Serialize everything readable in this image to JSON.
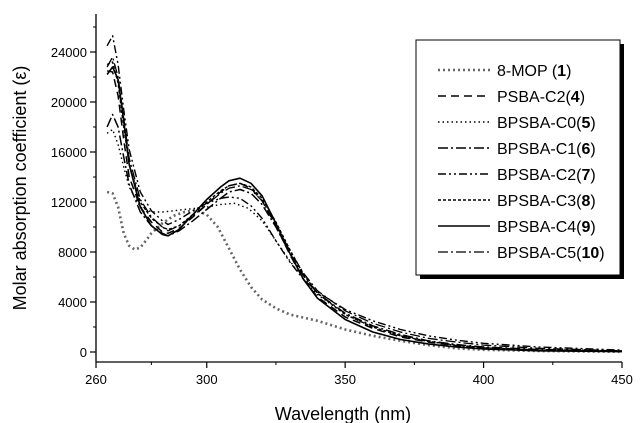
{
  "chart_data": {
    "type": "line",
    "xlabel": "Wavelength (nm)",
    "ylabel": "Molar absorption coefficient (ε)",
    "xlim": [
      260,
      450
    ],
    "ylim": [
      0,
      26000
    ],
    "x_ticks": [
      260,
      300,
      350,
      400,
      450
    ],
    "y_ticks": [
      0,
      4000,
      8000,
      12000,
      16000,
      20000,
      24000
    ],
    "x_tick_labels": [
      "260",
      "300",
      "350",
      "400",
      "450"
    ],
    "y_tick_labels": [
      "0",
      "4000",
      "8000",
      "12000",
      "16000",
      "20000",
      "24000"
    ],
    "grid": false,
    "legend_position": "top-right",
    "series": [
      {
        "name": "8-MOP (1)",
        "label_text": "8-MOP (",
        "label_num": "1",
        "label_end": ")",
        "color": "#666666",
        "dash": "2,3",
        "width": 2.6,
        "points": [
          [
            264,
            12800
          ],
          [
            266,
            12700
          ],
          [
            268,
            11600
          ],
          [
            270,
            9500
          ],
          [
            272,
            8500
          ],
          [
            274,
            8200
          ],
          [
            276,
            8350
          ],
          [
            278,
            8900
          ],
          [
            280,
            9500
          ],
          [
            284,
            10300
          ],
          [
            288,
            10900
          ],
          [
            292,
            11200
          ],
          [
            296,
            11350
          ],
          [
            300,
            11000
          ],
          [
            304,
            10000
          ],
          [
            308,
            8300
          ],
          [
            312,
            6600
          ],
          [
            316,
            5200
          ],
          [
            320,
            4200
          ],
          [
            325,
            3500
          ],
          [
            330,
            3000
          ],
          [
            340,
            2500
          ],
          [
            350,
            1800
          ],
          [
            360,
            1300
          ],
          [
            370,
            900
          ],
          [
            380,
            550
          ],
          [
            390,
            300
          ],
          [
            400,
            180
          ],
          [
            420,
            80
          ],
          [
            450,
            20
          ]
        ]
      },
      {
        "name": "PSBA-C2(4)",
        "label_text": "PSBA-C2(",
        "label_num": "4",
        "label_end": ")",
        "color": "#000000",
        "dash": "8,5",
        "width": 1.5,
        "points": [
          [
            264,
            22500
          ],
          [
            266,
            22400
          ],
          [
            268,
            20500
          ],
          [
            270,
            17000
          ],
          [
            272,
            14000
          ],
          [
            276,
            11600
          ],
          [
            280,
            10400
          ],
          [
            284,
            9600
          ],
          [
            286,
            9500
          ],
          [
            290,
            9900
          ],
          [
            295,
            10800
          ],
          [
            300,
            11800
          ],
          [
            305,
            12800
          ],
          [
            308,
            13300
          ],
          [
            312,
            13500
          ],
          [
            316,
            13100
          ],
          [
            320,
            12100
          ],
          [
            325,
            10100
          ],
          [
            330,
            7800
          ],
          [
            335,
            5800
          ],
          [
            340,
            4400
          ],
          [
            350,
            2800
          ],
          [
            360,
            1900
          ],
          [
            370,
            1200
          ],
          [
            380,
            800
          ],
          [
            390,
            500
          ],
          [
            400,
            320
          ],
          [
            420,
            150
          ],
          [
            450,
            50
          ]
        ]
      },
      {
        "name": "BPSBA-C0(5)",
        "label_text": "BPSBA-C0(",
        "label_num": "5",
        "label_end": ")",
        "color": "#000000",
        "dash": "1.5,3",
        "width": 1.4,
        "points": [
          [
            264,
            17500
          ],
          [
            266,
            17800
          ],
          [
            268,
            16600
          ],
          [
            270,
            14800
          ],
          [
            272,
            13200
          ],
          [
            276,
            11600
          ],
          [
            280,
            11200
          ],
          [
            284,
            11200
          ],
          [
            288,
            11300
          ],
          [
            292,
            11400
          ],
          [
            296,
            11500
          ],
          [
            300,
            11600
          ],
          [
            305,
            11800
          ],
          [
            310,
            11900
          ],
          [
            315,
            11500
          ],
          [
            320,
            10500
          ],
          [
            325,
            8900
          ],
          [
            330,
            7300
          ],
          [
            335,
            5800
          ],
          [
            340,
            4600
          ],
          [
            350,
            3000
          ],
          [
            360,
            2000
          ],
          [
            370,
            1300
          ],
          [
            380,
            850
          ],
          [
            390,
            520
          ],
          [
            400,
            330
          ],
          [
            420,
            150
          ],
          [
            450,
            50
          ]
        ]
      },
      {
        "name": "BPSBA-C1(6)",
        "label_text": "BPSBA-C1(",
        "label_num": "6",
        "label_end": ")",
        "color": "#000000",
        "dash": "10,3,2,3",
        "width": 1.5,
        "points": [
          [
            264,
            18000
          ],
          [
            266,
            19000
          ],
          [
            268,
            18000
          ],
          [
            270,
            15600
          ],
          [
            272,
            13400
          ],
          [
            276,
            11200
          ],
          [
            280,
            10100
          ],
          [
            284,
            9500
          ],
          [
            286,
            9300
          ],
          [
            290,
            9700
          ],
          [
            295,
            10500
          ],
          [
            300,
            11400
          ],
          [
            305,
            12300
          ],
          [
            308,
            12800
          ],
          [
            312,
            13000
          ],
          [
            316,
            12700
          ],
          [
            320,
            11800
          ],
          [
            325,
            10000
          ],
          [
            330,
            7900
          ],
          [
            335,
            6100
          ],
          [
            340,
            4700
          ],
          [
            350,
            3100
          ],
          [
            360,
            2100
          ],
          [
            370,
            1400
          ],
          [
            380,
            900
          ],
          [
            390,
            600
          ],
          [
            400,
            400
          ],
          [
            420,
            200
          ],
          [
            450,
            80
          ]
        ]
      },
      {
        "name": "BPSBA-C2(7)",
        "label_text": "BPSBA-C2(",
        "label_num": "7",
        "label_end": ")",
        "color": "#000000",
        "dash": "8,3,2,3,2,3",
        "width": 1.4,
        "points": [
          [
            264,
            24500
          ],
          [
            266,
            25300
          ],
          [
            268,
            23000
          ],
          [
            270,
            19400
          ],
          [
            272,
            16200
          ],
          [
            276,
            12800
          ],
          [
            280,
            11300
          ],
          [
            284,
            10500
          ],
          [
            286,
            10200
          ],
          [
            290,
            10600
          ],
          [
            295,
            11300
          ],
          [
            300,
            11900
          ],
          [
            305,
            12300
          ],
          [
            308,
            12400
          ],
          [
            312,
            12300
          ],
          [
            316,
            11700
          ],
          [
            320,
            10700
          ],
          [
            325,
            8900
          ],
          [
            330,
            7200
          ],
          [
            335,
            5800
          ],
          [
            340,
            4800
          ],
          [
            350,
            3400
          ],
          [
            360,
            2500
          ],
          [
            370,
            1800
          ],
          [
            380,
            1300
          ],
          [
            390,
            950
          ],
          [
            400,
            700
          ],
          [
            420,
            400
          ],
          [
            450,
            150
          ]
        ]
      },
      {
        "name": "BPSBA-C3(8)",
        "label_text": "BPSBA-C3(",
        "label_num": "8",
        "label_end": ")",
        "color": "#000000",
        "dash": "3,2",
        "width": 1.4,
        "points": [
          [
            264,
            23000
          ],
          [
            266,
            23200
          ],
          [
            268,
            21500
          ],
          [
            270,
            18000
          ],
          [
            272,
            15000
          ],
          [
            276,
            12000
          ],
          [
            280,
            10700
          ],
          [
            284,
            10000
          ],
          [
            286,
            9800
          ],
          [
            290,
            10100
          ],
          [
            295,
            11000
          ],
          [
            300,
            12000
          ],
          [
            305,
            12900
          ],
          [
            308,
            13300
          ],
          [
            312,
            13500
          ],
          [
            316,
            13200
          ],
          [
            320,
            12300
          ],
          [
            325,
            10400
          ],
          [
            330,
            8200
          ],
          [
            335,
            6200
          ],
          [
            340,
            4700
          ],
          [
            350,
            3000
          ],
          [
            360,
            2000
          ],
          [
            370,
            1300
          ],
          [
            380,
            850
          ],
          [
            390,
            550
          ],
          [
            400,
            350
          ],
          [
            420,
            150
          ],
          [
            450,
            60
          ]
        ]
      },
      {
        "name": "BPSBA-C4(9)",
        "label_text": "BPSBA-C4(",
        "label_num": "9",
        "label_end": ")",
        "color": "#000000",
        "dash": "",
        "width": 1.6,
        "points": [
          [
            264,
            22200
          ],
          [
            266,
            22800
          ],
          [
            268,
            21800
          ],
          [
            270,
            18500
          ],
          [
            272,
            15000
          ],
          [
            276,
            11600
          ],
          [
            280,
            10100
          ],
          [
            284,
            9400
          ],
          [
            286,
            9300
          ],
          [
            290,
            9800
          ],
          [
            295,
            11000
          ],
          [
            300,
            12200
          ],
          [
            305,
            13200
          ],
          [
            308,
            13700
          ],
          [
            312,
            13900
          ],
          [
            316,
            13500
          ],
          [
            320,
            12500
          ],
          [
            325,
            10300
          ],
          [
            330,
            7900
          ],
          [
            335,
            5800
          ],
          [
            340,
            4300
          ],
          [
            350,
            2600
          ],
          [
            360,
            1600
          ],
          [
            370,
            1000
          ],
          [
            380,
            650
          ],
          [
            390,
            400
          ],
          [
            400,
            250
          ],
          [
            420,
            100
          ],
          [
            450,
            30
          ]
        ]
      },
      {
        "name": "BPSBA-C5(10)",
        "label_text": "BPSBA-C5(",
        "label_num": "10",
        "label_end": ")",
        "color": "#000000",
        "dash": "10,3,2,3",
        "width": 1.3,
        "points": [
          [
            264,
            22800
          ],
          [
            266,
            23600
          ],
          [
            268,
            22000
          ],
          [
            270,
            18700
          ],
          [
            272,
            15500
          ],
          [
            276,
            12200
          ],
          [
            280,
            10800
          ],
          [
            284,
            10000
          ],
          [
            286,
            9700
          ],
          [
            290,
            10100
          ],
          [
            295,
            10900
          ],
          [
            300,
            11800
          ],
          [
            305,
            12700
          ],
          [
            308,
            13100
          ],
          [
            312,
            13300
          ],
          [
            316,
            13000
          ],
          [
            320,
            12100
          ],
          [
            325,
            10200
          ],
          [
            330,
            8100
          ],
          [
            335,
            6300
          ],
          [
            340,
            4900
          ],
          [
            350,
            3300
          ],
          [
            360,
            2300
          ],
          [
            370,
            1600
          ],
          [
            380,
            1100
          ],
          [
            390,
            800
          ],
          [
            400,
            550
          ],
          [
            420,
            300
          ],
          [
            450,
            100
          ]
        ]
      }
    ]
  }
}
